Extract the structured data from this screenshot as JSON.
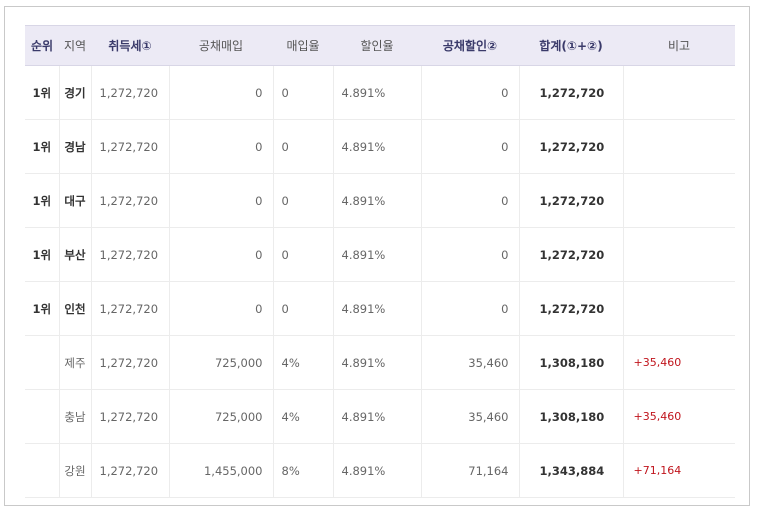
{
  "table": {
    "headers": [
      "순위",
      "지역",
      "취득세①",
      "공채매입",
      "매입율",
      "할인율",
      "공채할인②",
      "합계(①+②)",
      "비고"
    ],
    "rows": [
      {
        "rank": "1위",
        "region": "경기",
        "tax": "1,272,720",
        "bond": "0",
        "buy_rate": "0",
        "discount_rate": "4.891%",
        "bond_discount": "0",
        "total": "1,272,720",
        "note": ""
      },
      {
        "rank": "1위",
        "region": "경남",
        "tax": "1,272,720",
        "bond": "0",
        "buy_rate": "0",
        "discount_rate": "4.891%",
        "bond_discount": "0",
        "total": "1,272,720",
        "note": ""
      },
      {
        "rank": "1위",
        "region": "대구",
        "tax": "1,272,720",
        "bond": "0",
        "buy_rate": "0",
        "discount_rate": "4.891%",
        "bond_discount": "0",
        "total": "1,272,720",
        "note": ""
      },
      {
        "rank": "1위",
        "region": "부산",
        "tax": "1,272,720",
        "bond": "0",
        "buy_rate": "0",
        "discount_rate": "4.891%",
        "bond_discount": "0",
        "total": "1,272,720",
        "note": ""
      },
      {
        "rank": "1위",
        "region": "인천",
        "tax": "1,272,720",
        "bond": "0",
        "buy_rate": "0",
        "discount_rate": "4.891%",
        "bond_discount": "0",
        "total": "1,272,720",
        "note": ""
      },
      {
        "rank": "",
        "region": "제주",
        "tax": "1,272,720",
        "bond": "725,000",
        "buy_rate": "4%",
        "discount_rate": "4.891%",
        "bond_discount": "35,460",
        "total": "1,308,180",
        "note": "+35,460"
      },
      {
        "rank": "",
        "region": "충남",
        "tax": "1,272,720",
        "bond": "725,000",
        "buy_rate": "4%",
        "discount_rate": "4.891%",
        "bond_discount": "35,460",
        "total": "1,308,180",
        "note": "+35,460"
      },
      {
        "rank": "",
        "region": "강원",
        "tax": "1,272,720",
        "bond": "1,455,000",
        "buy_rate": "8%",
        "discount_rate": "4.891%",
        "bond_discount": "71,164",
        "total": "1,343,884",
        "note": "+71,164"
      }
    ]
  },
  "colors": {
    "header_bg": "#eceaf5",
    "note_red": "#c0141c"
  }
}
